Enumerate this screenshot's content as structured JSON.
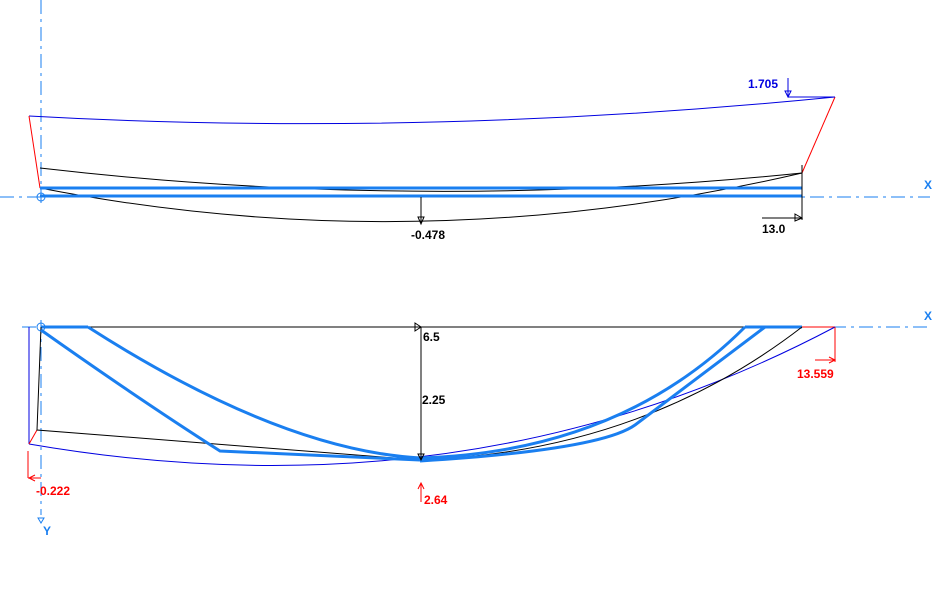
{
  "colors": {
    "hull_outline": "#0000e0",
    "strakes": "#1a7ff0",
    "axis": "#1a7ff0",
    "dimension": "#000000",
    "highlight": "#ff0000"
  },
  "profile_view": {
    "axis_label": "X",
    "sheer_height_label": "1.705",
    "keel_depth_label": "-0.478",
    "length_label": "13.0"
  },
  "plan_view": {
    "axis_x_label": "X",
    "axis_y_label": "Y",
    "top_label": "6.5",
    "half_beam_label": "2.25",
    "max_beam_label": "2.64",
    "transom_offset_label": "-0.222",
    "overall_length_label": "13.559"
  }
}
